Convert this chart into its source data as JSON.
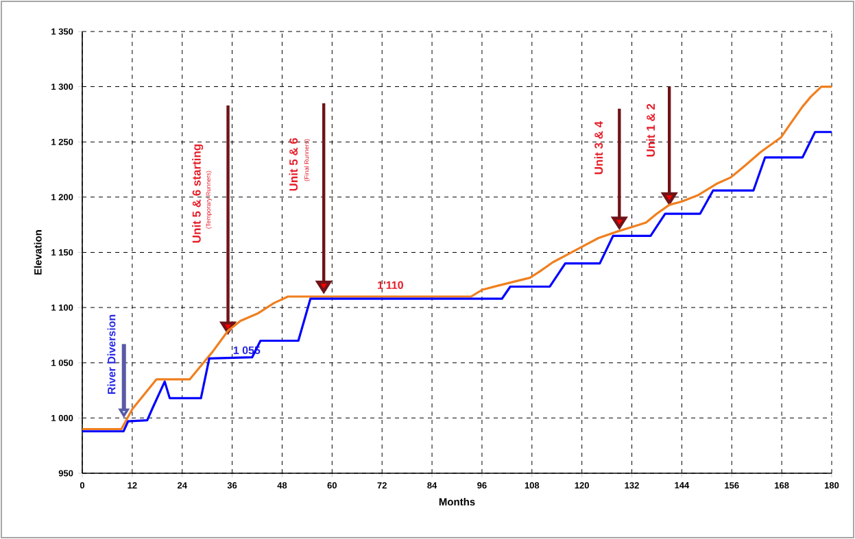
{
  "chart_data": {
    "type": "line",
    "xlabel": "Months",
    "ylabel": "Elevation",
    "xlim": [
      0,
      180
    ],
    "ylim": [
      950,
      1350
    ],
    "xticks": [
      0,
      12,
      24,
      36,
      48,
      60,
      72,
      84,
      96,
      108,
      120,
      132,
      144,
      156,
      168,
      180
    ],
    "yticks": [
      {
        "value": 950,
        "label": "950"
      },
      {
        "value": 1000,
        "label": "1 000"
      },
      {
        "value": 1050,
        "label": "1 050"
      },
      {
        "value": 1100,
        "label": "1 100"
      },
      {
        "value": 1150,
        "label": "1 150"
      },
      {
        "value": 1200,
        "label": "1 200"
      },
      {
        "value": 1250,
        "label": "1 250"
      },
      {
        "value": 1300,
        "label": "1 300"
      },
      {
        "value": 1350,
        "label": "1 350"
      }
    ],
    "grid": true,
    "marker": "none",
    "line_style": "solid",
    "series": [
      {
        "color": "#f07f1e",
        "x": [
          0,
          9.4,
          12,
          15,
          17.8,
          25.8,
          28,
          31.3,
          35,
          38,
          42.3,
          46,
          49.4,
          51,
          93.4,
          96,
          100,
          107.5,
          110,
          113,
          116,
          120,
          124,
          128.6,
          132,
          135.4,
          138,
          141,
          144,
          148,
          152.3,
          155.8,
          159,
          163,
          167.8,
          170,
          173,
          175,
          177.5,
          180
        ],
        "values": [
          990,
          990,
          1008,
          1022,
          1035,
          1035,
          1045,
          1060,
          1079,
          1088,
          1095,
          1104,
          1110,
          1110,
          1110,
          1116,
          1120,
          1127,
          1133,
          1141,
          1147,
          1155,
          1163,
          1169,
          1173,
          1177,
          1185,
          1193,
          1196,
          1202,
          1212,
          1218,
          1228,
          1241,
          1254,
          1266,
          1282,
          1291,
          1300,
          1300
        ]
      },
      {
        "color": "#0000ff",
        "x": [
          0,
          9.9,
          11,
          15.6,
          17,
          19.8,
          21,
          28.5,
          30.5,
          40.8,
          42.8,
          51.9,
          54.8,
          100.8,
          102.8,
          112.3,
          116,
          124.3,
          127.5,
          136.5,
          140,
          148.4,
          151.5,
          161.2,
          164,
          173,
          176,
          180
        ],
        "values": [
          988,
          988,
          997,
          998,
          1010,
          1033,
          1018,
          1018,
          1054,
          1055,
          1070,
          1070,
          1108,
          1108,
          1119,
          1119,
          1140,
          1140,
          1165,
          1165,
          1185,
          1185,
          1206,
          1206,
          1236,
          1236,
          1259,
          1259
        ]
      }
    ],
    "annotations": [
      {
        "text": "River Diversion",
        "x": 10,
        "y": 1000
      },
      "Unit 5 & 6 starting",
      "(Temporary Runners)",
      "Unit 5 & 6",
      "(Final Runners)",
      "Unit 3 & 4",
      "Unit 1 & 2",
      {
        "text": "1'110",
        "x": 74,
        "y": 1110
      },
      {
        "text": "1 055",
        "x": 35,
        "y": 1055
      }
    ]
  }
}
